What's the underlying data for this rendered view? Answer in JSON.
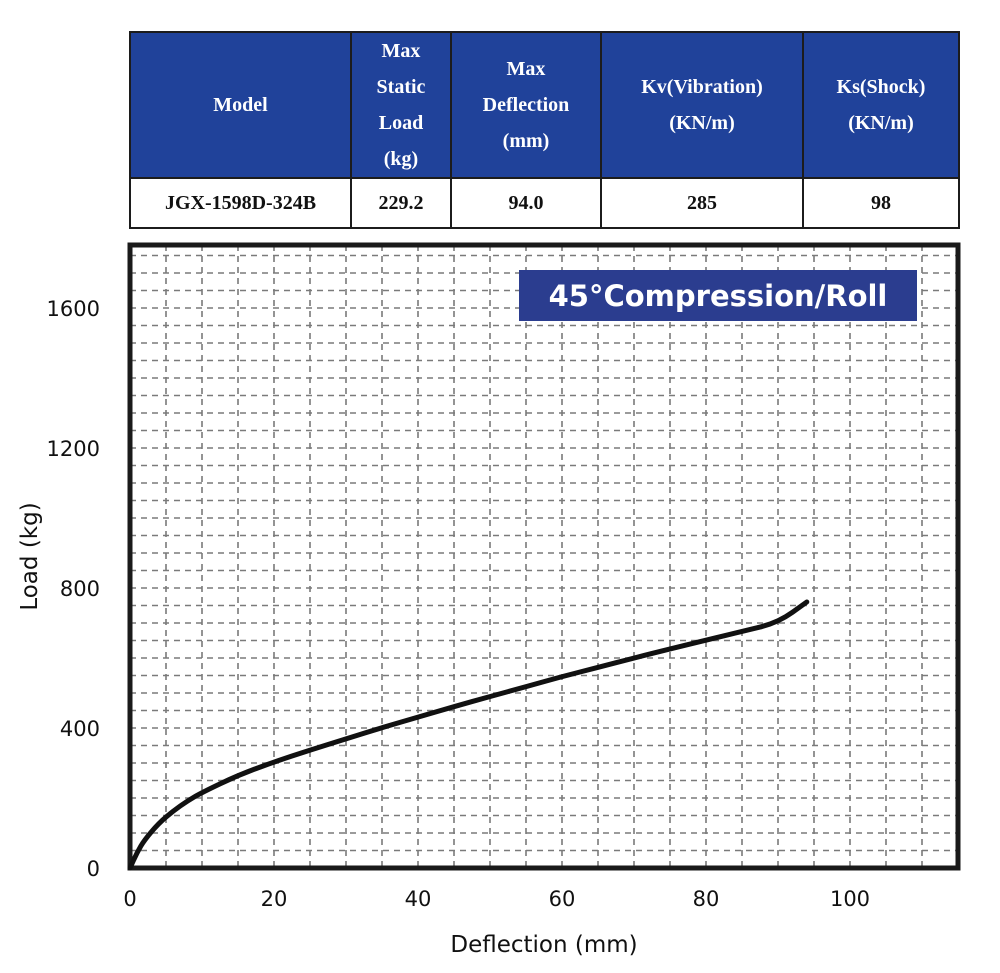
{
  "table": {
    "headers": [
      "Model",
      "Max\nStatic\nLoad\n(kg)",
      "Max\nDeflection\n(mm)",
      "Kv(Vibration)\n(KN/m)",
      "Ks(Shock)\n(KN/m)"
    ],
    "row": [
      "JGX-1598D-324B",
      "229.2",
      "94.0",
      "285",
      "98"
    ]
  },
  "colors": {
    "header_bg": "#20429a",
    "legend_bg": "#2b3d8f",
    "curve": "#111111",
    "grid": "#7a7a7a"
  },
  "chart_data": {
    "type": "line",
    "title": "45°Compression/Roll",
    "xlabel": "Deflection (mm)",
    "ylabel": "Load (kg)",
    "xlim": [
      0,
      115
    ],
    "ylim": [
      0,
      1780
    ],
    "xticks": [
      0,
      20,
      40,
      60,
      80,
      100
    ],
    "yticks": [
      0,
      400,
      800,
      1200,
      1600
    ],
    "grid": true,
    "legend_position": "top-right",
    "series": [
      {
        "x": [
          0,
          1,
          2,
          4,
          6,
          8,
          10,
          15,
          20,
          25,
          30,
          35,
          40,
          45,
          50,
          55,
          60,
          65,
          70,
          75,
          80,
          85,
          90,
          94
        ],
        "y": [
          0,
          45,
          80,
          128,
          163,
          192,
          216,
          265,
          303,
          337,
          369,
          401,
          431,
          461,
          490,
          518,
          547,
          573,
          600,
          626,
          651,
          676,
          701,
          760
        ]
      }
    ]
  }
}
